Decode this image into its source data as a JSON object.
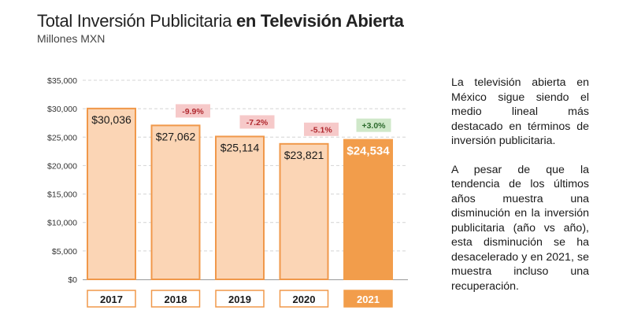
{
  "header": {
    "title_regular": "Total Inversión Publicitaria",
    "title_bold": "en Televisión Abierta",
    "subtitle": "Millones MXN"
  },
  "description": {
    "paragraph_1": "La televisión abierta en México sigue siendo el medio lineal más destacado en términos de inversión publicitaria.",
    "paragraph_2": "A pesar de que la tendencia de los últimos años muestra una disminución en la inversión publicitaria (año vs año), esta disminución se ha desacelerado y en 2021, se muestra incluso una recuperación."
  },
  "chart_data": {
    "type": "bar",
    "categories": [
      "2017",
      "2018",
      "2019",
      "2020",
      "2021"
    ],
    "values": [
      30036,
      27062,
      25114,
      23821,
      24534
    ],
    "value_labels": [
      "$30,036",
      "$27,062",
      "$25,114",
      "$23,821",
      "$24,534"
    ],
    "changes": [
      "",
      "-9.9%",
      "-7.2%",
      "-5.1%",
      "+3.0%"
    ],
    "ylim": [
      0,
      35000
    ],
    "yticks": [
      "$0",
      "$5,000",
      "$10,000",
      "$15,000",
      "$20,000",
      "$25,000",
      "$30,000",
      "$35,000"
    ],
    "grid": true,
    "colors": {
      "bar_fill": "#fbd5b5",
      "bar_stroke": "#f0984a",
      "highlight": "#f29d4b",
      "negative_badge": "#f6c9c9",
      "negative_text": "#b0282e",
      "positive_badge": "#cfe8c9",
      "positive_text": "#2e6b2e",
      "grid": "#d4d4d4"
    }
  }
}
